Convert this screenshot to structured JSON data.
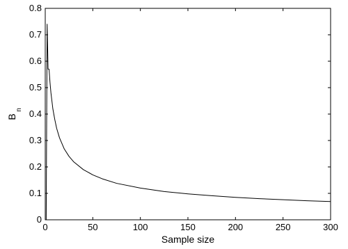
{
  "chart_data": {
    "type": "line",
    "xlabel": "Sample size",
    "ylabel": "B",
    "ylabel_subscript": "n",
    "xlim": [
      0,
      300
    ],
    "ylim": [
      0,
      0.8
    ],
    "xticks": [
      "0",
      "50",
      "100",
      "150",
      "200",
      "250",
      "300"
    ],
    "yticks": [
      "0",
      "0.1",
      "0.2",
      "0.3",
      "0.4",
      "0.5",
      "0.6",
      "0.7",
      "0.8"
    ],
    "grid": false,
    "series": [
      {
        "x": [
          1,
          2,
          3,
          4,
          5,
          6,
          7,
          8,
          10,
          12,
          15,
          20,
          25,
          30,
          40,
          50,
          60,
          75,
          100,
          125,
          150,
          175,
          200,
          225,
          250,
          275,
          300
        ],
        "values": [
          0.0,
          0.74,
          0.57,
          0.57,
          0.52,
          0.48,
          0.45,
          0.42,
          0.38,
          0.346,
          0.31,
          0.268,
          0.24,
          0.219,
          0.19,
          0.17,
          0.155,
          0.138,
          0.12,
          0.107,
          0.098,
          0.091,
          0.085,
          0.08,
          0.076,
          0.072,
          0.069
        ],
        "color": "#000000"
      }
    ]
  }
}
